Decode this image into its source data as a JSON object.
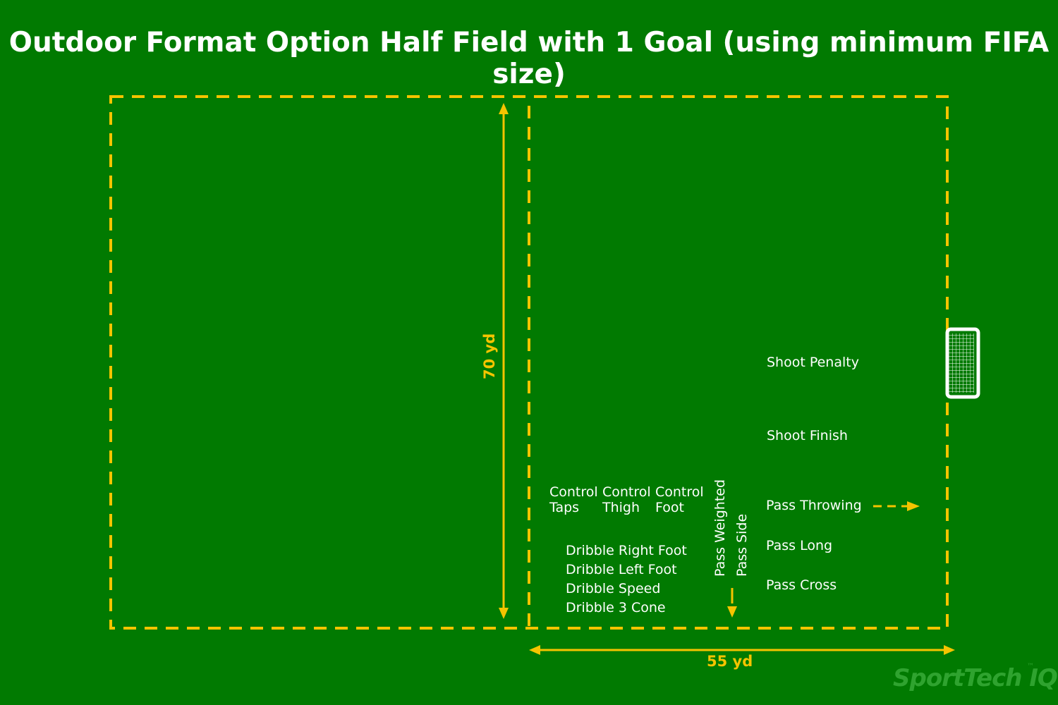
{
  "title": "Outdoor Format Option Half Field with 1 Goal (using minimum FIFA size)",
  "colors": {
    "background": "#017a01",
    "dashed_line": "#f5c400",
    "text": "#ffffff",
    "goal": "#ffffff",
    "brand": "#2fa32f"
  },
  "dimensions": {
    "height_label": "70 yd",
    "width_label": "55 yd"
  },
  "stations": {
    "control": [
      {
        "line1": "Control",
        "line2": "Taps"
      },
      {
        "line1": "Control",
        "line2": "Thigh"
      },
      {
        "line1": "Control",
        "line2": "Foot"
      }
    ],
    "dribble": [
      "Dribble Right Foot",
      "Dribble Left Foot",
      "Dribble Speed",
      "Dribble 3 Cone"
    ],
    "pass_vertical": [
      "Pass Weighted",
      "Pass Side"
    ],
    "right_column": [
      "Shoot Penalty",
      "Shoot Finish",
      "Pass Throwing",
      "Pass Long",
      "Pass Cross"
    ]
  },
  "brand": {
    "name": "SportTech IQ",
    "trademark": "™"
  }
}
